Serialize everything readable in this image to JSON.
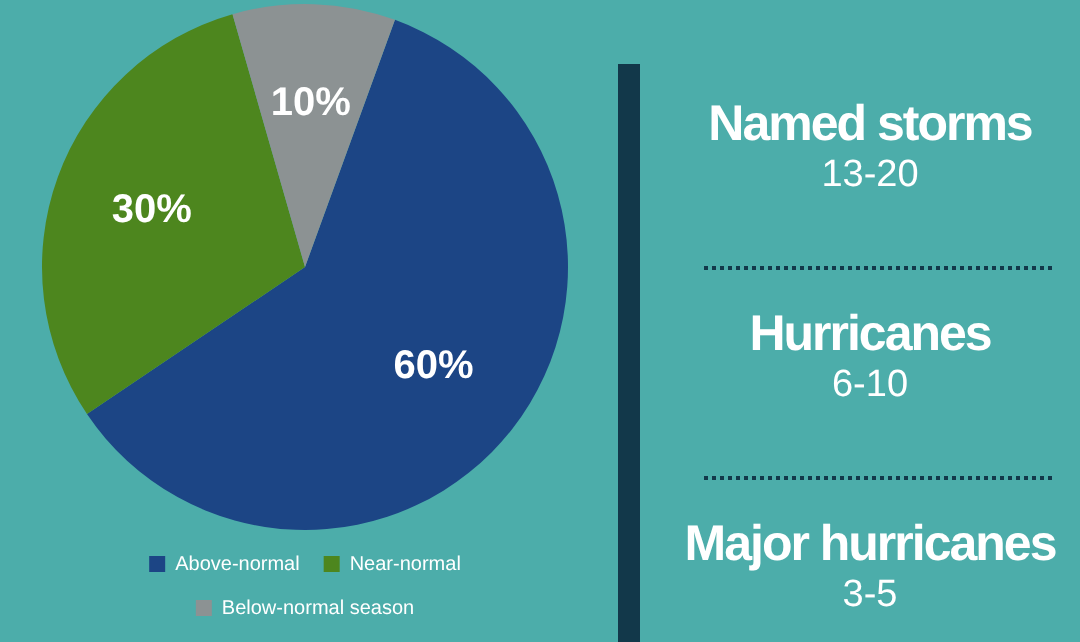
{
  "chart_data": {
    "type": "pie",
    "categories": [
      "Above-normal",
      "Near-normal",
      "Below-normal season"
    ],
    "values": [
      60,
      30,
      10
    ],
    "colors": [
      "#1c4585",
      "#4d861e",
      "#8c9293"
    ],
    "value_labels": [
      "60%",
      "30%",
      "10%"
    ],
    "legend": "bottom",
    "annotations": [
      "Named storms",
      "13-20",
      "Hurricanes",
      "6-10",
      "Major hurricanes",
      "3-5"
    ]
  }
}
